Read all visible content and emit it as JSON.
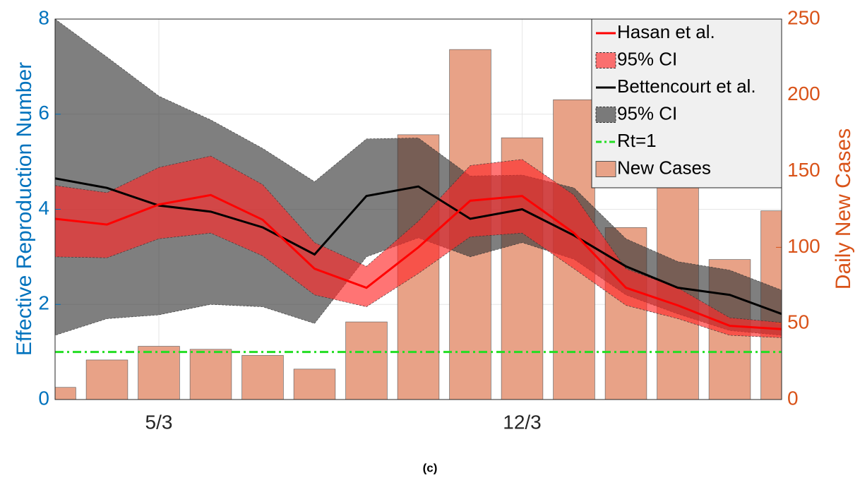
{
  "chart_data": {
    "type": "combo",
    "categories": [
      null,
      null,
      "5/3",
      null,
      null,
      null,
      null,
      null,
      null,
      "12/3",
      null,
      null,
      null,
      null,
      null
    ],
    "ylabel": "Effective Reproduction Number",
    "y2label": "Daily New Cases",
    "caption": "(c)",
    "ylim": [
      0,
      8
    ],
    "yticks": [
      0,
      2,
      4,
      6,
      8
    ],
    "y2lim": [
      0,
      250
    ],
    "y2ticks": [
      0,
      50,
      100,
      150,
      200,
      250
    ],
    "grid": true,
    "legend": "upper right",
    "series": [
      {
        "name": "Hasan et al.",
        "kind": "line",
        "color": "#ff0000",
        "values": [
          3.8,
          3.68,
          4.1,
          4.3,
          3.78,
          2.75,
          2.35,
          3.2,
          4.18,
          4.28,
          3.5,
          2.35,
          1.98,
          1.55,
          1.48
        ]
      },
      {
        "name": "95% CI",
        "kind": "band",
        "color": "#ff2a2a",
        "lower": [
          3.0,
          2.98,
          3.38,
          3.5,
          3.02,
          2.2,
          1.95,
          2.65,
          3.42,
          3.5,
          2.75,
          1.98,
          1.7,
          1.35,
          1.3
        ],
        "upper": [
          4.5,
          4.35,
          4.88,
          5.12,
          4.52,
          3.3,
          2.8,
          3.75,
          4.92,
          5.05,
          4.3,
          2.75,
          2.35,
          1.72,
          1.62
        ]
      },
      {
        "name": "Bettencourt et al.",
        "kind": "line",
        "color": "#000000",
        "values": [
          4.65,
          4.45,
          4.08,
          3.95,
          3.62,
          3.05,
          4.28,
          4.48,
          3.8,
          4.0,
          3.45,
          2.8,
          2.35,
          2.2,
          1.8
        ]
      },
      {
        "name": "95% CI",
        "kind": "band",
        "color": "#3a3a3a",
        "lower": [
          1.35,
          1.7,
          1.78,
          2.0,
          1.95,
          1.6,
          3.0,
          3.4,
          3.0,
          3.3,
          2.95,
          2.2,
          1.8,
          1.45,
          1.35
        ],
        "upper": [
          8.0,
          7.2,
          6.38,
          5.88,
          5.28,
          4.58,
          5.48,
          5.5,
          4.7,
          4.72,
          4.45,
          3.38,
          2.9,
          2.72,
          2.3
        ]
      },
      {
        "name": "Rt=1",
        "kind": "hline",
        "color": "#22dd22",
        "value": 1
      },
      {
        "name": "New Cases",
        "kind": "bar",
        "axis": "y2",
        "color": "#e8a287",
        "values": [
          8,
          26,
          35,
          33,
          29,
          20,
          51,
          174,
          230,
          172,
          197,
          113,
          150,
          92,
          124
        ]
      }
    ]
  }
}
